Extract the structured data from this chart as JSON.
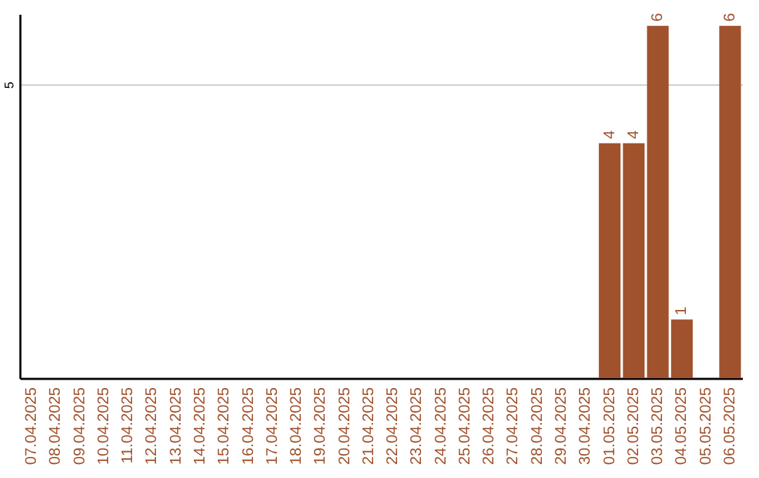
{
  "chart_data": {
    "type": "bar",
    "categories": [
      "07.04.2025",
      "08.04.2025",
      "09.04.2025",
      "10.04.2025",
      "11.04.2025",
      "12.04.2025",
      "13.04.2025",
      "14.04.2025",
      "15.04.2025",
      "16.04.2025",
      "17.04.2025",
      "18.04.2025",
      "19.04.2025",
      "20.04.2025",
      "21.04.2025",
      "22.04.2025",
      "23.04.2025",
      "24.04.2025",
      "25.04.2025",
      "26.04.2025",
      "27.04.2025",
      "28.04.2025",
      "29.04.2025",
      "30.04.2025",
      "01.05.2025",
      "02.05.2025",
      "03.05.2025",
      "04.05.2025",
      "05.05.2025",
      "06.05.2025"
    ],
    "values": [
      null,
      null,
      null,
      null,
      null,
      null,
      null,
      null,
      null,
      null,
      null,
      null,
      null,
      null,
      null,
      null,
      null,
      null,
      null,
      null,
      null,
      null,
      null,
      null,
      4,
      4,
      6,
      1,
      null,
      6
    ],
    "color": "#a0522d",
    "ylim": [
      0,
      6.2
    ],
    "yticks": [
      5
    ],
    "grid": "y",
    "data_labels": true
  }
}
